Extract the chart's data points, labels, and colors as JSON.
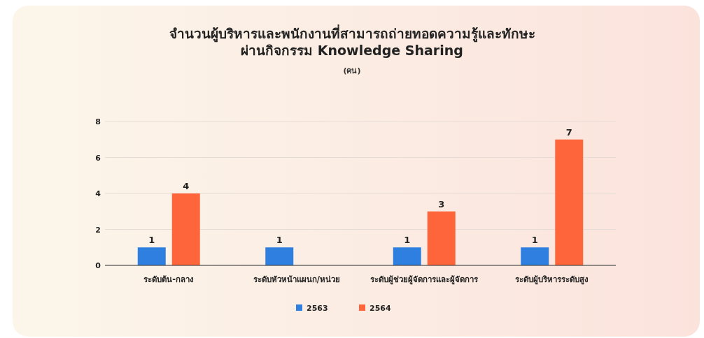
{
  "chart_data": {
    "type": "bar",
    "title": "จำนวนผู้บริหารและพนักงานที่สามารถถ่ายทอดความรู้และทักษะ\nผ่านกิจกรรม Knowledge Sharing",
    "subtitle": "(คน)",
    "categories": [
      "ระดับต้น-กลาง",
      "ระดับหัวหน้าแผนก/หน่วย",
      "ระดับผู้ช่วยผู้จัดการและผู้จัดการ",
      "ระดับผู้บริหารระดับสูง"
    ],
    "series": [
      {
        "name": "2563",
        "color": "#2f7fe0",
        "values": [
          1,
          1,
          1,
          1
        ]
      },
      {
        "name": "2564",
        "color": "#ff653b",
        "values": [
          4,
          null,
          3,
          7
        ]
      }
    ],
    "ylim": [
      0,
      8
    ],
    "yticks": [
      0,
      2,
      4,
      6,
      8
    ],
    "grid": "y",
    "data_labels": true,
    "legend": "bottom"
  }
}
